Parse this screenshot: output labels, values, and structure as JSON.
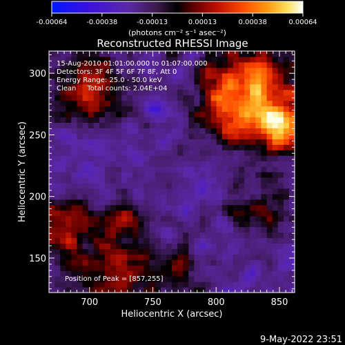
{
  "chart_data": {
    "type": "heatmap",
    "title": "Reconstructed RHESSI Image",
    "xlabel": "Heliocentric X (arcsec)",
    "ylabel": "Heliocentric Y (arcsec)",
    "xlim": [
      668,
      862
    ],
    "ylim": [
      122,
      318
    ],
    "x_ticks": [
      700,
      750,
      800,
      850
    ],
    "y_ticks": [
      150,
      200,
      250,
      300
    ],
    "annotations": [
      "15-Aug-2010 01:01:00.000 to 01:07:00.000",
      "Detectors: 3F 4F 5F 6F 7F 8F, Att 0",
      "Energy Range: 25.0 - 50.0 keV",
      "Clean     Total counts: 2.04E+04"
    ],
    "peak_label": "Position of Peak = [857,255]",
    "peak": [
      857,
      255
    ],
    "colorbar": {
      "ticks": [
        "-0.00064",
        "-0.00038",
        "-0.00013",
        "0.00013",
        "0.00038",
        "0.00064"
      ],
      "units_label": "(photons cm⁻² s⁻¹ asec⁻²)",
      "range": [
        -0.00064,
        0.00064
      ]
    },
    "grid": false,
    "legend": "colorbar top"
  },
  "footer": {
    "date": "9-May-2022 23:51"
  },
  "colors": {
    "background": "#000000",
    "axis": "#ffffff"
  }
}
